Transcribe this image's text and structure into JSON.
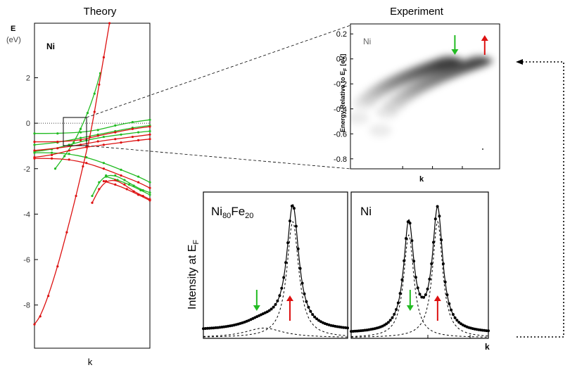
{
  "page": {
    "theory_title": "Theory",
    "experiment_title": "Experiment"
  },
  "chart_data": [
    {
      "id": "theory",
      "type": "line",
      "title": "Theory",
      "ylabel": "E",
      "yunit": "(eV)",
      "xlabel": "k",
      "annotation": "Ni",
      "xlim": [
        0,
        1
      ],
      "ylim": [
        -9.9,
        4.4
      ],
      "yticks": [
        2,
        0,
        -2,
        -4,
        -6,
        -8
      ],
      "zero_line": true,
      "colors": {
        "minority": "#22bb22",
        "majority": "#dd1111"
      },
      "series": [
        {
          "name": "maj-parabola",
          "color": "majority",
          "x": [
            0,
            0.05,
            0.12,
            0.2,
            0.28,
            0.36,
            0.42,
            0.48,
            0.52,
            0.56,
            0.6,
            0.65
          ],
          "y": [
            -8.85,
            -8.5,
            -7.6,
            -6.3,
            -4.8,
            -3.2,
            -1.9,
            -0.6,
            0.5,
            1.7,
            2.9,
            4.4
          ]
        },
        {
          "name": "min-parabola",
          "color": "minority",
          "x": [
            0.18,
            0.26,
            0.34,
            0.4,
            0.46,
            0.52,
            0.57
          ],
          "y": [
            -2.0,
            -1.45,
            -0.85,
            -0.25,
            0.45,
            1.3,
            2.2
          ]
        },
        {
          "name": "maj-flat-1",
          "color": "majority",
          "x": [
            0,
            0.2,
            0.4,
            0.55,
            0.7,
            0.85,
            1.0
          ],
          "y": [
            -0.82,
            -0.82,
            -0.75,
            -0.55,
            -0.4,
            -0.25,
            -0.15
          ]
        },
        {
          "name": "maj-flat-2",
          "color": "majority",
          "x": [
            0,
            0.2,
            0.4,
            0.55,
            0.7,
            0.85,
            1.0
          ],
          "y": [
            -1.2,
            -1.1,
            -0.95,
            -0.8,
            -0.7,
            -0.6,
            -0.5
          ]
        },
        {
          "name": "maj-flat-3",
          "color": "majority",
          "x": [
            0,
            0.15,
            0.3,
            0.45,
            0.6,
            0.75,
            0.9,
            1.0
          ],
          "y": [
            -1.5,
            -1.4,
            -1.2,
            -1.05,
            -0.95,
            -0.85,
            -0.75,
            -0.7
          ]
        },
        {
          "name": "maj-down-1",
          "color": "majority",
          "x": [
            0,
            0.15,
            0.3,
            0.45,
            0.6,
            0.75,
            0.9,
            1.0
          ],
          "y": [
            -1.55,
            -1.55,
            -1.6,
            -1.75,
            -2.0,
            -2.3,
            -2.6,
            -2.85
          ]
        },
        {
          "name": "maj-lower",
          "color": "majority",
          "x": [
            0.5,
            0.56,
            0.62,
            0.7,
            0.78,
            0.86,
            0.94,
            1.0
          ],
          "y": [
            -3.5,
            -2.9,
            -2.55,
            -2.5,
            -2.7,
            -3.0,
            -3.2,
            -3.35
          ]
        },
        {
          "name": "maj-lower-2",
          "color": "majority",
          "x": [
            0.6,
            0.7,
            0.8,
            0.9,
            1.0
          ],
          "y": [
            -2.55,
            -2.7,
            -2.9,
            -3.15,
            -3.4
          ]
        },
        {
          "name": "min-flat-1",
          "color": "minority",
          "x": [
            0,
            0.2,
            0.4,
            0.55,
            0.7,
            0.85,
            1.0
          ],
          "y": [
            -0.45,
            -0.45,
            -0.4,
            -0.3,
            -0.1,
            0.05,
            0.15
          ]
        },
        {
          "name": "min-flat-2",
          "color": "minority",
          "x": [
            0,
            0.2,
            0.4,
            0.55,
            0.7,
            0.85,
            1.0
          ],
          "y": [
            -0.95,
            -0.85,
            -0.65,
            -0.5,
            -0.35,
            -0.2,
            -0.1
          ]
        },
        {
          "name": "min-flat-3",
          "color": "minority",
          "x": [
            0,
            0.15,
            0.3,
            0.45,
            0.6,
            0.75,
            0.9,
            1.0
          ],
          "y": [
            -1.25,
            -1.15,
            -0.95,
            -0.75,
            -0.6,
            -0.5,
            -0.4,
            -0.35
          ]
        },
        {
          "name": "min-down-1",
          "color": "minority",
          "x": [
            0,
            0.15,
            0.3,
            0.45,
            0.6,
            0.75,
            0.9,
            1.0
          ],
          "y": [
            -1.3,
            -1.3,
            -1.35,
            -1.5,
            -1.75,
            -2.05,
            -2.35,
            -2.6
          ]
        },
        {
          "name": "min-lower",
          "color": "minority",
          "x": [
            0.5,
            0.56,
            0.62,
            0.7,
            0.78,
            0.86,
            0.94,
            1.0
          ],
          "y": [
            -3.2,
            -2.6,
            -2.3,
            -2.3,
            -2.5,
            -2.75,
            -2.95,
            -3.05
          ]
        },
        {
          "name": "min-lower-2",
          "color": "minority",
          "x": [
            0.62,
            0.72,
            0.82,
            0.92,
            1.0
          ],
          "y": [
            -2.35,
            -2.5,
            -2.7,
            -2.95,
            -3.15
          ]
        }
      ]
    },
    {
      "id": "experiment-map",
      "type": "heatmap",
      "title": "Experiment",
      "ylabel": "Energy Relative to E",
      "ylabel_sub": "F",
      "ylabel_unit": "[eV]",
      "xlabel": "k",
      "annotation": "Ni",
      "ylim": [
        -0.88,
        0.28
      ],
      "yticks": [
        "0.2",
        "0.0",
        "-0.2",
        "-0.4",
        "-0.6",
        "-0.8"
      ],
      "ytick_values": [
        0.2,
        0.0,
        -0.2,
        -0.4,
        -0.6,
        -0.8
      ],
      "xlim": [
        0,
        1
      ],
      "arrows": [
        {
          "spin": "minority",
          "direction": "down",
          "x": 0.7,
          "color": "#22bb22"
        },
        {
          "spin": "majority",
          "direction": "up",
          "x": 0.9,
          "color": "#dd1111"
        }
      ],
      "bands": [
        {
          "name": "minority-band",
          "k_start": 0.05,
          "e_start": -0.45,
          "k_top": 0.66,
          "e_top": 0.0
        },
        {
          "name": "majority-band",
          "k_start": 0.2,
          "e_start": -0.55,
          "k_top": 0.86,
          "e_top": 0.0
        }
      ]
    },
    {
      "id": "mdc-nife",
      "type": "line",
      "annotation": "Ni",
      "annotation_sub": "80",
      "annotation_2": "Fe",
      "annotation_2_sub": "20",
      "ylabel": "Intensity at E",
      "ylabel_sub": "F",
      "xlim": [
        0,
        1
      ],
      "ylim": [
        0,
        1.15
      ],
      "peaks": [
        {
          "spin": "minority",
          "center": 0.42,
          "width": 0.16,
          "amplitude": 0.08
        },
        {
          "spin": "majority",
          "center": 0.62,
          "width": 0.05,
          "amplitude": 0.96
        }
      ],
      "background": 0.06,
      "arrows": [
        {
          "spin": "minority",
          "direction": "down",
          "x": 0.37,
          "color": "#22bb22"
        },
        {
          "spin": "majority",
          "direction": "up",
          "x": 0.6,
          "color": "#dd1111"
        }
      ]
    },
    {
      "id": "mdc-ni",
      "type": "line",
      "annotation": "Ni",
      "xlabel": "k",
      "xlim": [
        0,
        1
      ],
      "ylim": [
        0,
        1.15
      ],
      "peaks": [
        {
          "spin": "minority",
          "center": 0.42,
          "width": 0.045,
          "amplitude": 0.85
        },
        {
          "spin": "majority",
          "center": 0.63,
          "width": 0.045,
          "amplitude": 0.96
        }
      ],
      "background": 0.04,
      "arrows": [
        {
          "spin": "minority",
          "direction": "down",
          "x": 0.43,
          "color": "#22bb22"
        },
        {
          "spin": "majority",
          "direction": "up",
          "x": 0.63,
          "color": "#dd1111"
        }
      ]
    }
  ]
}
